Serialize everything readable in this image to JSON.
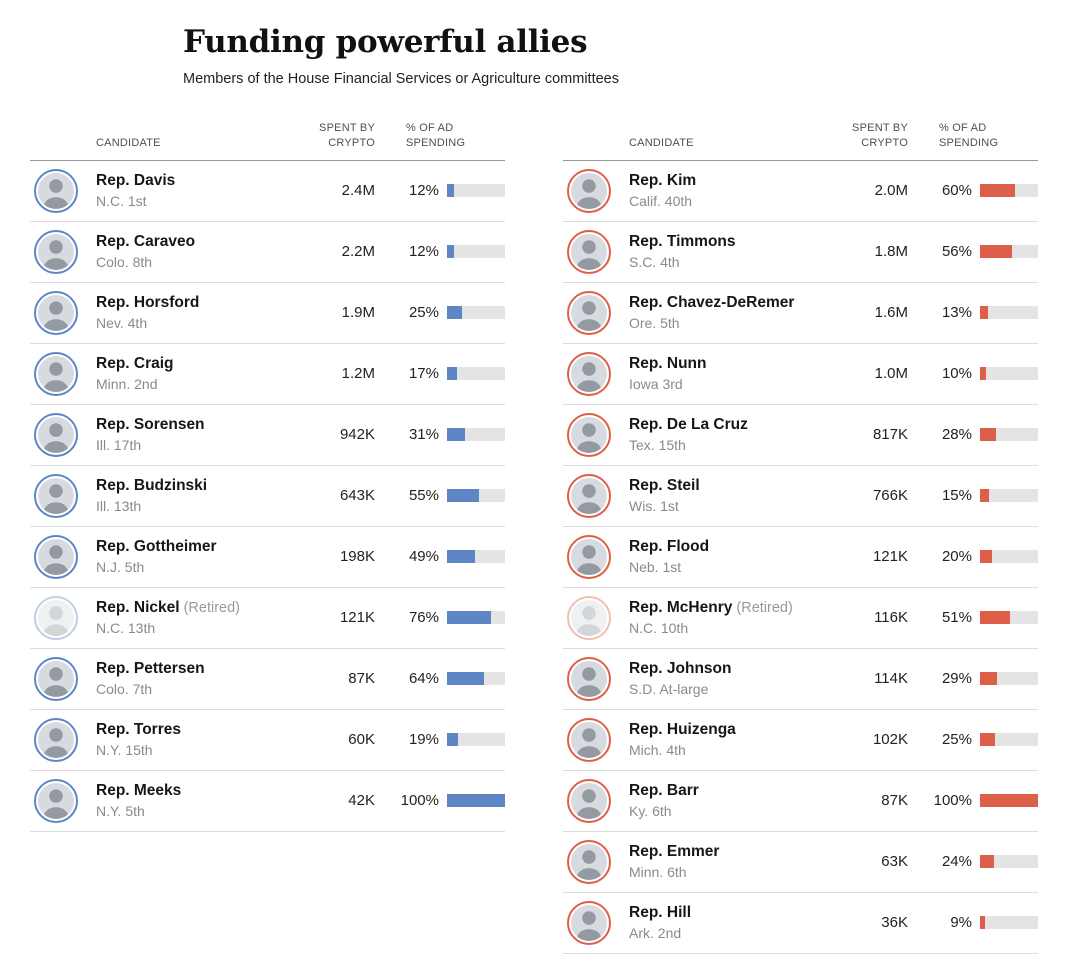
{
  "title": "Funding powerful allies",
  "subtitle": "Members of the House Financial Services or Agriculture committees",
  "header": {
    "candidate": "Candidate",
    "spent": "Spent by crypto",
    "pct": "% of ad spending"
  },
  "colors": {
    "dem_blue": "#5e86c4",
    "gop_red": "#de5f49",
    "bar_track": "#e4e4e4"
  },
  "tables": [
    {
      "side": "left",
      "party_color": "#5e86c4",
      "rows": [
        {
          "name": "Rep. Davis",
          "note": "",
          "district": "N.C. 1st",
          "spent": "2.4M",
          "pct": 12,
          "retired": false
        },
        {
          "name": "Rep. Caraveo",
          "note": "",
          "district": "Colo. 8th",
          "spent": "2.2M",
          "pct": 12,
          "retired": false
        },
        {
          "name": "Rep. Horsford",
          "note": "",
          "district": "Nev. 4th",
          "spent": "1.9M",
          "pct": 25,
          "retired": false
        },
        {
          "name": "Rep. Craig",
          "note": "",
          "district": "Minn. 2nd",
          "spent": "1.2M",
          "pct": 17,
          "retired": false
        },
        {
          "name": "Rep. Sorensen",
          "note": "",
          "district": "Ill. 17th",
          "spent": "942K",
          "pct": 31,
          "retired": false
        },
        {
          "name": "Rep. Budzinski",
          "note": "",
          "district": "Ill. 13th",
          "spent": "643K",
          "pct": 55,
          "retired": false
        },
        {
          "name": "Rep. Gottheimer",
          "note": "",
          "district": "N.J. 5th",
          "spent": "198K",
          "pct": 49,
          "retired": false
        },
        {
          "name": "Rep. Nickel",
          "note": "(Retired)",
          "district": "N.C. 13th",
          "spent": "121K",
          "pct": 76,
          "retired": true
        },
        {
          "name": "Rep. Pettersen",
          "note": "",
          "district": "Colo. 7th",
          "spent": "87K",
          "pct": 64,
          "retired": false
        },
        {
          "name": "Rep. Torres",
          "note": "",
          "district": "N.Y. 15th",
          "spent": "60K",
          "pct": 19,
          "retired": false
        },
        {
          "name": "Rep. Meeks",
          "note": "",
          "district": "N.Y. 5th",
          "spent": "42K",
          "pct": 100,
          "retired": false
        }
      ]
    },
    {
      "side": "right",
      "party_color": "#de5f49",
      "rows": [
        {
          "name": "Rep. Kim",
          "note": "",
          "district": "Calif. 40th",
          "spent": "2.0M",
          "pct": 60,
          "retired": false
        },
        {
          "name": "Rep. Timmons",
          "note": "",
          "district": "S.C. 4th",
          "spent": "1.8M",
          "pct": 56,
          "retired": false
        },
        {
          "name": "Rep. Chavez-DeRemer",
          "note": "",
          "district": "Ore. 5th",
          "spent": "1.6M",
          "pct": 13,
          "retired": false
        },
        {
          "name": "Rep. Nunn",
          "note": "",
          "district": "Iowa 3rd",
          "spent": "1.0M",
          "pct": 10,
          "retired": false
        },
        {
          "name": "Rep. De La Cruz",
          "note": "",
          "district": "Tex. 15th",
          "spent": "817K",
          "pct": 28,
          "retired": false
        },
        {
          "name": "Rep. Steil",
          "note": "",
          "district": "Wis. 1st",
          "spent": "766K",
          "pct": 15,
          "retired": false
        },
        {
          "name": "Rep. Flood",
          "note": "",
          "district": "Neb. 1st",
          "spent": "121K",
          "pct": 20,
          "retired": false
        },
        {
          "name": "Rep. McHenry",
          "note": "(Retired)",
          "district": "N.C. 10th",
          "spent": "116K",
          "pct": 51,
          "retired": true
        },
        {
          "name": "Rep. Johnson",
          "note": "",
          "district": "S.D. At-large",
          "spent": "114K",
          "pct": 29,
          "retired": false
        },
        {
          "name": "Rep. Huizenga",
          "note": "",
          "district": "Mich. 4th",
          "spent": "102K",
          "pct": 25,
          "retired": false
        },
        {
          "name": "Rep. Barr",
          "note": "",
          "district": "Ky. 6th",
          "spent": "87K",
          "pct": 100,
          "retired": false
        },
        {
          "name": "Rep. Emmer",
          "note": "",
          "district": "Minn. 6th",
          "spent": "63K",
          "pct": 24,
          "retired": false
        },
        {
          "name": "Rep. Hill",
          "note": "",
          "district": "Ark. 2nd",
          "spent": "36K",
          "pct": 9,
          "retired": false
        }
      ]
    }
  ],
  "chart_data": [
    {
      "type": "bar",
      "title": "Funding powerful allies",
      "subtitle": "Members of the House Financial Services or Agriculture committees",
      "column": "left",
      "bar_color": "#5e86c4",
      "categories": [
        "Rep. Davis (N.C. 1st)",
        "Rep. Caraveo (Colo. 8th)",
        "Rep. Horsford (Nev. 4th)",
        "Rep. Craig (Minn. 2nd)",
        "Rep. Sorensen (Ill. 17th)",
        "Rep. Budzinski (Ill. 13th)",
        "Rep. Gottheimer (N.J. 5th)",
        "Rep. Nickel (Retired) (N.C. 13th)",
        "Rep. Pettersen (Colo. 7th)",
        "Rep. Torres (N.Y. 15th)",
        "Rep. Meeks (N.Y. 5th)"
      ],
      "series": [
        {
          "name": "Spent by crypto",
          "values": [
            "2.4M",
            "2.2M",
            "1.9M",
            "1.2M",
            "942K",
            "643K",
            "198K",
            "121K",
            "87K",
            "60K",
            "42K"
          ]
        },
        {
          "name": "% of ad spending",
          "values": [
            12,
            12,
            25,
            17,
            31,
            55,
            49,
            76,
            64,
            19,
            100
          ]
        }
      ],
      "xlim": [
        0,
        100
      ],
      "grid": false,
      "legend": "none"
    },
    {
      "type": "bar",
      "title": "Funding powerful allies",
      "subtitle": "Members of the House Financial Services or Agriculture committees",
      "column": "right",
      "bar_color": "#de5f49",
      "categories": [
        "Rep. Kim (Calif. 40th)",
        "Rep. Timmons (S.C. 4th)",
        "Rep. Chavez-DeRemer (Ore. 5th)",
        "Rep. Nunn (Iowa 3rd)",
        "Rep. De La Cruz (Tex. 15th)",
        "Rep. Steil (Wis. 1st)",
        "Rep. Flood (Neb. 1st)",
        "Rep. McHenry (Retired) (N.C. 10th)",
        "Rep. Johnson (S.D. At-large)",
        "Rep. Huizenga (Mich. 4th)",
        "Rep. Barr (Ky. 6th)",
        "Rep. Emmer (Minn. 6th)",
        "Rep. Hill (Ark. 2nd)"
      ],
      "series": [
        {
          "name": "Spent by crypto",
          "values": [
            "2.0M",
            "1.8M",
            "1.6M",
            "1.0M",
            "817K",
            "766K",
            "121K",
            "116K",
            "114K",
            "102K",
            "87K",
            "63K",
            "36K"
          ]
        },
        {
          "name": "% of ad spending",
          "values": [
            60,
            56,
            13,
            10,
            28,
            15,
            20,
            51,
            29,
            25,
            100,
            24,
            9
          ]
        }
      ],
      "xlim": [
        0,
        100
      ],
      "grid": false,
      "legend": "none"
    }
  ]
}
